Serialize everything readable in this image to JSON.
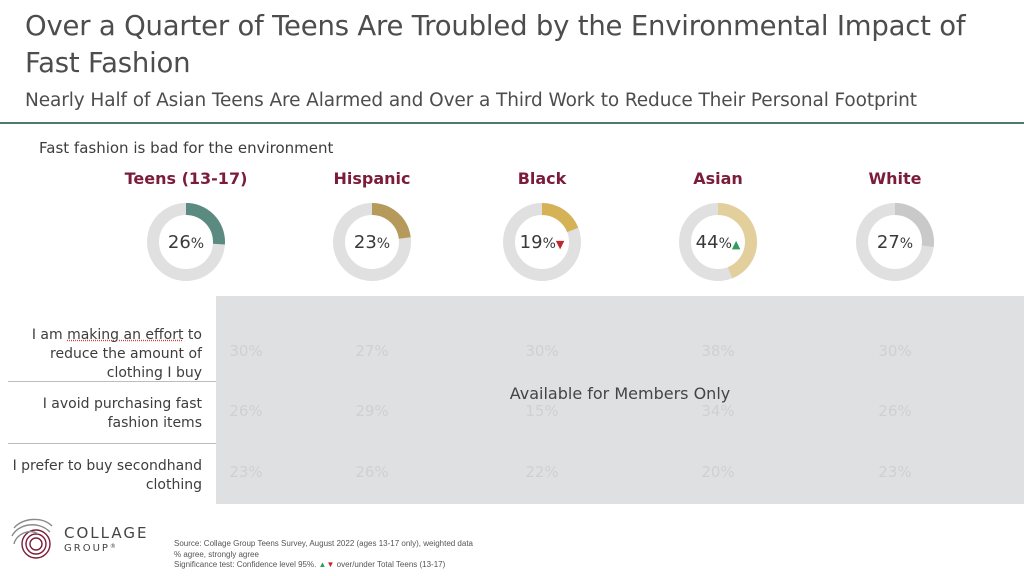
{
  "title": "Over a Quarter of Teens Are Troubled by the Environmental Impact of Fast Fashion",
  "subtitle": "Nearly Half of Asian Teens Are Alarmed and Over a Third Work to Reduce Their Personal Footprint",
  "question": "Fast fashion is bad for the environment",
  "colors": {
    "accent_rule": "#4f7a70",
    "segment_label": "#7b1d3a",
    "track": "#e0e0e0",
    "up": "#2e9e5b",
    "down": "#c0282d"
  },
  "chart_data": {
    "type": "donut",
    "title": "Fast fashion is bad for the environment",
    "unit": "%",
    "categories": [
      "Teens (13-17)",
      "Hispanic",
      "Black",
      "Asian",
      "White"
    ],
    "values": [
      26,
      23,
      19,
      44,
      27
    ],
    "value_labels": [
      "26%",
      "23%",
      "19%",
      "44%",
      "27%"
    ],
    "significance": [
      "",
      "",
      "down",
      "up",
      ""
    ],
    "colors": [
      "#5a8a80",
      "#b59a5c",
      "#d6b257",
      "#e3cf9c",
      "#c9c9c9"
    ]
  },
  "members_overlay": "Available for Members Only",
  "statements": [
    {
      "label_pre": "I am ",
      "label_underlined": "making an effort",
      "label_post": " to reduce the amount of clothing I buy",
      "ghost_values": [
        "30%",
        "27%",
        "30%",
        "38%",
        "30%"
      ]
    },
    {
      "label": "I avoid purchasing fast fashion items",
      "ghost_values": [
        "26%",
        "29%",
        "15%",
        "34%",
        "26%"
      ]
    },
    {
      "label": "I prefer to buy secondhand clothing",
      "ghost_values": [
        "23%",
        "26%",
        "22%",
        "20%",
        "23%"
      ]
    }
  ],
  "logo": {
    "line1": "COLLAGE",
    "line2": "GROUP",
    "mark": "®"
  },
  "source": {
    "line1": "Source: Collage Group Teens Survey, August 2022 (ages 13-17 only), weighted data",
    "line2": "% agree, strongly agree",
    "line3_pre": "Significance test: Confidence level 95%.",
    "line3_post": "over/under Total Teens (13-17)",
    "up_glyph": "▲",
    "down_glyph": "▼"
  }
}
